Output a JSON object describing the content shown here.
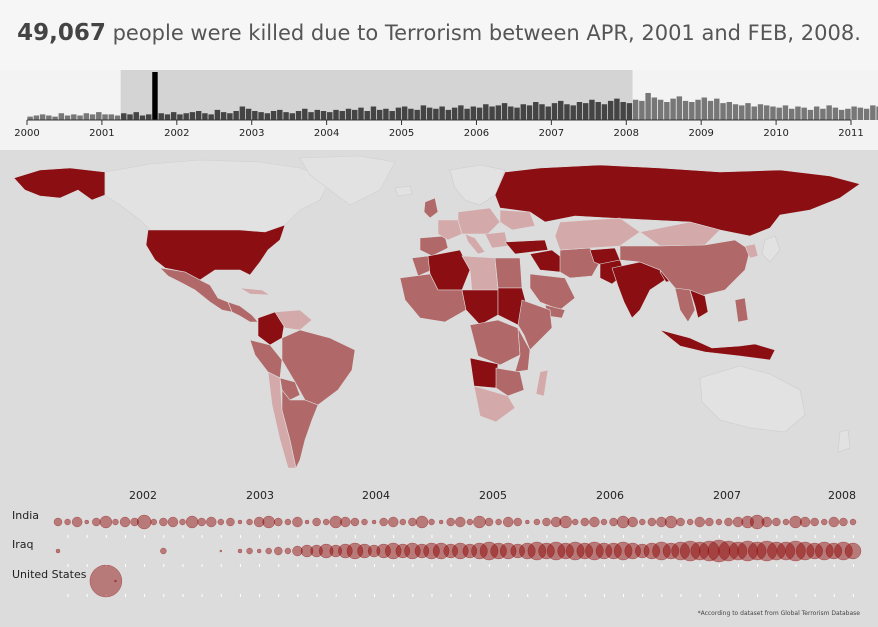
{
  "header": {
    "count": "49,067",
    "text": "people were killed due to Terrorism between APR, 2001 and FEB, 2008."
  },
  "footnote": "*According to dataset from Global Terrorism Database",
  "colors": {
    "dark": "#8b0e12",
    "mid": "#b16868",
    "light": "#d4a9aa",
    "none": "#e2e2e2",
    "bar": "#777777",
    "bar_dark": "#444444",
    "bubble": "#8b0000"
  },
  "chart_data": [
    {
      "type": "bar",
      "name": "timeline",
      "x_ticks": [
        "2000",
        "2001",
        "2002",
        "2003",
        "2004",
        "2005",
        "2006",
        "2007",
        "2008",
        "2009",
        "2010",
        "2011"
      ],
      "selection": {
        "start": "2001-04",
        "end": "2008-02"
      },
      "highlight": {
        "month": "2001-09"
      },
      "values": [
        3,
        4,
        5,
        4,
        3,
        6,
        4,
        5,
        4,
        6,
        5,
        7,
        5,
        5,
        4,
        6,
        5,
        7,
        4,
        5,
        40,
        6,
        5,
        7,
        5,
        6,
        7,
        8,
        6,
        5,
        9,
        7,
        6,
        8,
        12,
        10,
        8,
        7,
        6,
        8,
        9,
        7,
        6,
        8,
        10,
        7,
        9,
        8,
        7,
        9,
        8,
        10,
        9,
        11,
        8,
        12,
        9,
        10,
        8,
        11,
        12,
        10,
        9,
        13,
        11,
        10,
        12,
        9,
        11,
        13,
        10,
        12,
        11,
        14,
        12,
        13,
        15,
        12,
        11,
        14,
        13,
        16,
        14,
        12,
        15,
        17,
        14,
        13,
        16,
        15,
        18,
        16,
        14,
        17,
        19,
        16,
        15,
        18,
        17,
        24,
        20,
        18,
        16,
        19,
        21,
        17,
        16,
        18,
        20,
        17,
        19,
        15,
        16,
        14,
        13,
        15,
        12,
        14,
        13,
        12,
        11,
        13,
        10,
        12,
        11,
        9,
        12,
        10,
        13,
        11,
        9,
        10,
        12,
        11,
        10,
        13,
        12,
        11,
        10,
        14,
        11,
        12
      ]
    },
    {
      "type": "scatter",
      "name": "country bubbles",
      "x_ticks": [
        "2002",
        "2003",
        "2004",
        "2005",
        "2006",
        "2007",
        "2008"
      ],
      "series": [
        {
          "name": "India",
          "values": [
            4,
            3,
            5,
            2,
            4,
            6,
            3,
            5,
            4,
            7,
            3,
            4,
            5,
            3,
            6,
            4,
            5,
            3,
            4,
            2,
            3,
            5,
            6,
            4,
            3,
            5,
            2,
            4,
            3,
            6,
            5,
            4,
            3,
            2,
            4,
            5,
            3,
            4,
            6,
            3,
            2,
            4,
            5,
            3,
            6,
            4,
            3,
            5,
            4,
            2,
            3,
            4,
            5,
            6,
            3,
            4,
            5,
            3,
            4,
            6,
            5,
            3,
            4,
            5,
            6,
            4,
            3,
            5,
            4,
            3,
            4,
            5,
            6,
            7,
            5,
            4,
            3,
            6,
            5,
            4,
            3,
            5,
            4,
            3
          ]
        },
        {
          "name": "Iraq",
          "values": [
            2,
            0,
            0,
            0,
            0,
            0,
            0,
            0,
            0,
            0,
            0,
            3,
            0,
            0,
            0,
            0,
            0,
            1,
            0,
            2,
            3,
            2,
            3,
            4,
            3,
            5,
            6,
            6,
            7,
            6,
            7,
            8,
            7,
            6,
            7,
            8,
            7,
            8,
            7,
            8,
            8,
            7,
            8,
            7,
            8,
            9,
            8,
            8,
            7,
            8,
            9,
            8,
            9,
            8,
            9,
            8,
            9,
            8,
            8,
            9,
            8,
            7,
            8,
            9,
            8,
            9,
            10,
            9,
            10,
            11,
            10,
            9,
            10,
            9,
            10,
            9,
            9,
            10,
            9,
            8,
            9,
            8,
            9,
            8
          ]
        },
        {
          "name": "United States",
          "values": [
            0,
            0,
            0,
            0,
            0,
            16,
            1,
            0,
            0,
            0,
            0,
            0,
            0,
            0,
            0,
            0,
            0,
            0,
            0,
            0,
            0,
            0,
            0,
            0,
            0,
            0,
            0,
            0,
            0,
            0,
            0,
            0,
            0,
            0,
            0,
            0,
            0,
            0,
            0,
            0,
            0,
            0,
            0,
            0,
            0,
            0,
            0,
            0,
            0,
            0,
            0,
            0,
            0,
            0,
            0,
            0,
            0,
            0,
            0,
            0,
            0,
            0,
            0,
            0,
            0,
            0,
            0,
            0,
            0,
            0,
            0,
            0,
            0,
            0,
            0,
            0,
            0,
            0,
            0,
            0,
            0,
            0,
            0,
            0
          ]
        }
      ]
    }
  ]
}
